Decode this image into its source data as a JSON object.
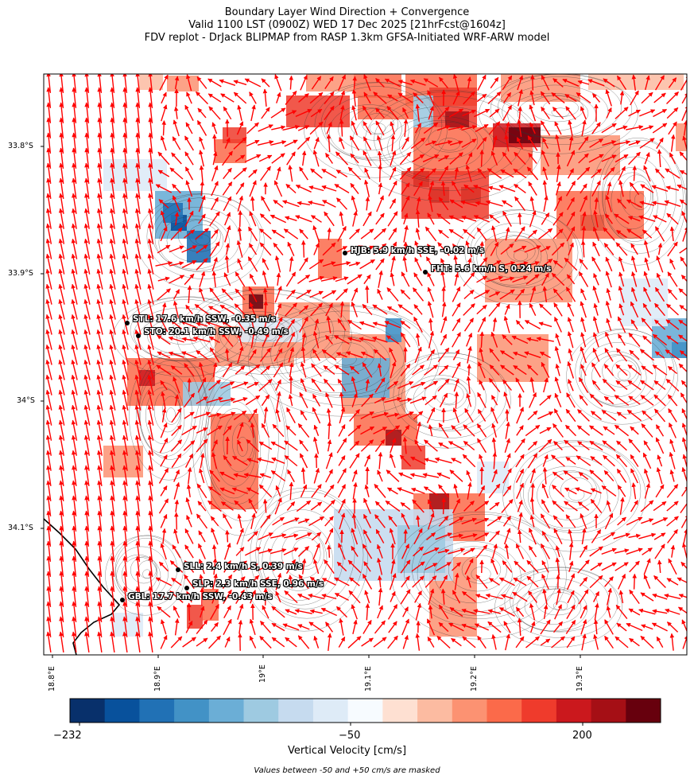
{
  "titles": {
    "line1": "Boundary Layer Wind Direction + Convergence",
    "line2": "Valid 1100 LST (0900Z) WED 17 Dec 2025 [21hrFcst@1604z]",
    "line3": "FDV replot - DrJack BLIPMAP from RASP 1.3km GFSA-Initiated WRF-ARW model"
  },
  "lat_ticks": [
    "33.8°S",
    "33.9°S",
    "34°S",
    "34.1°S"
  ],
  "lon_ticks": [
    "18.8°E",
    "18.9°E",
    "19°E",
    "19.1°E",
    "19.2°E",
    "19.3°E"
  ],
  "stations": [
    {
      "code": "HJB",
      "label": "HJB: 5.9 km/h SSE, -0.02 m/s"
    },
    {
      "code": "FHT",
      "label": "FHT: 5.6 km/h S, 0.24 m/s"
    },
    {
      "code": "STL",
      "label": "STL: 17.6 km/h SSW, -0.35 m/s"
    },
    {
      "code": "STO",
      "label": "STO: 20.1 km/h SSW, -0.49 m/s"
    },
    {
      "code": "SLL",
      "label": "SLL: 2.4 km/h S, 0.39 m/s"
    },
    {
      "code": "SLP",
      "label": "SLP: 2.3 km/h SSE, 0.96 m/s"
    },
    {
      "code": "GBL",
      "label": "GBL: 17.7 km/h SSW, -0.43 m/s"
    }
  ],
  "colorbar": {
    "tick_labels": [
      "−232",
      "−50",
      "200"
    ],
    "title": "Vertical Velocity [cm/s]",
    "colors": [
      "#08306b",
      "#08519c",
      "#2171b5",
      "#4292c6",
      "#6baed6",
      "#9ecae1",
      "#c6dbef",
      "#deebf7",
      "#f7fbff",
      "#fee0d2",
      "#fcbba1",
      "#fc9272",
      "#fb6a4a",
      "#ef3b2c",
      "#cb181d",
      "#a50f15",
      "#67000d"
    ]
  },
  "note": "Values between -50 and +50 cm/s are masked",
  "wind_arrow_color": "#ff0000"
}
